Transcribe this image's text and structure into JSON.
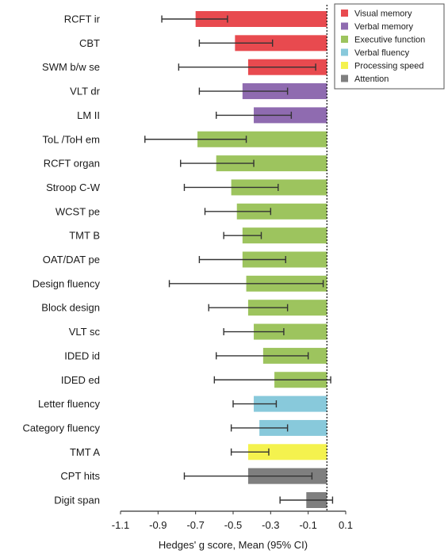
{
  "chart_data": {
    "type": "bar",
    "orientation": "horizontal",
    "xlabel": "Hedges' g score, Mean (95% CI)",
    "xlim": [
      -1.1,
      0.1
    ],
    "xticks": [
      "-1.1",
      "-0.9",
      "-0.7",
      "-0.5",
      "-0.3",
      "-0.1",
      "0.1"
    ],
    "reference_line": 0,
    "reference_style": "dotted",
    "legend_position": "top-right",
    "groups": [
      {
        "name": "Visual memory",
        "color": "#e84a4f"
      },
      {
        "name": "Verbal memory",
        "color": "#8f6bb0"
      },
      {
        "name": "Executive function",
        "color": "#9dc45e"
      },
      {
        "name": "Verbal fluency",
        "color": "#88c9db"
      },
      {
        "name": "Processing speed",
        "color": "#f4f24e"
      },
      {
        "name": "Attention",
        "color": "#7f7f7f"
      }
    ],
    "categories": [
      {
        "label": "RCFT ir",
        "group": "Visual memory",
        "mean": -0.7,
        "ci": [
          -0.88,
          -0.53
        ]
      },
      {
        "label": "CBT",
        "group": "Visual memory",
        "mean": -0.49,
        "ci": [
          -0.68,
          -0.29
        ]
      },
      {
        "label": "SWM b/w se",
        "group": "Visual memory",
        "mean": -0.42,
        "ci": [
          -0.79,
          -0.06
        ]
      },
      {
        "label": "VLT dr",
        "group": "Verbal memory",
        "mean": -0.45,
        "ci": [
          -0.68,
          -0.21
        ]
      },
      {
        "label": "LM II",
        "group": "Verbal memory",
        "mean": -0.39,
        "ci": [
          -0.59,
          -0.19
        ]
      },
      {
        "label": "ToL /ToH em",
        "group": "Executive function",
        "mean": -0.69,
        "ci": [
          -0.97,
          -0.43
        ]
      },
      {
        "label": "RCFT organ",
        "group": "Executive function",
        "mean": -0.59,
        "ci": [
          -0.78,
          -0.39
        ]
      },
      {
        "label": "Stroop C-W",
        "group": "Executive function",
        "mean": -0.51,
        "ci": [
          -0.76,
          -0.26
        ]
      },
      {
        "label": "WCST pe",
        "group": "Executive function",
        "mean": -0.48,
        "ci": [
          -0.65,
          -0.3
        ]
      },
      {
        "label": "TMT B",
        "group": "Executive function",
        "mean": -0.45,
        "ci": [
          -0.55,
          -0.35
        ]
      },
      {
        "label": "OAT/DAT pe",
        "group": "Executive function",
        "mean": -0.45,
        "ci": [
          -0.68,
          -0.22
        ]
      },
      {
        "label": "Design fluency",
        "group": "Executive function",
        "mean": -0.43,
        "ci": [
          -0.84,
          -0.02
        ]
      },
      {
        "label": "Block design",
        "group": "Executive function",
        "mean": -0.42,
        "ci": [
          -0.63,
          -0.21
        ]
      },
      {
        "label": "VLT sc",
        "group": "Executive function",
        "mean": -0.39,
        "ci": [
          -0.55,
          -0.23
        ]
      },
      {
        "label": "IDED id",
        "group": "Executive function",
        "mean": -0.34,
        "ci": [
          -0.59,
          -0.1
        ]
      },
      {
        "label": "IDED ed",
        "group": "Executive function",
        "mean": -0.28,
        "ci": [
          -0.6,
          0.02
        ]
      },
      {
        "label": "Letter fluency",
        "group": "Verbal fluency",
        "mean": -0.39,
        "ci": [
          -0.5,
          -0.27
        ]
      },
      {
        "label": "Category fluency",
        "group": "Verbal fluency",
        "mean": -0.36,
        "ci": [
          -0.51,
          -0.21
        ]
      },
      {
        "label": "TMT A",
        "group": "Processing speed",
        "mean": -0.42,
        "ci": [
          -0.51,
          -0.31
        ]
      },
      {
        "label": "CPT hits",
        "group": "Attention",
        "mean": -0.42,
        "ci": [
          -0.76,
          -0.08
        ]
      },
      {
        "label": "Digit span",
        "group": "Attention",
        "mean": -0.11,
        "ci": [
          -0.25,
          0.03
        ]
      }
    ]
  }
}
